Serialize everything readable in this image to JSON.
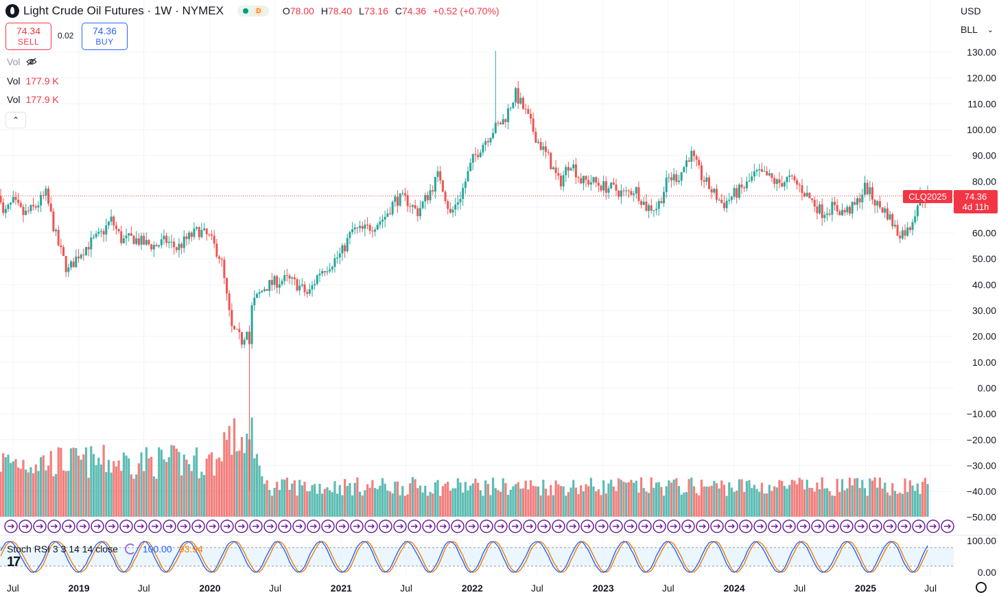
{
  "header": {
    "title": "Light Crude Oil Futures · 1W · NYMEX",
    "source_badge": "D",
    "ohlc": [
      {
        "k": "O",
        "v": "78.00"
      },
      {
        "k": "H",
        "v": "78.40"
      },
      {
        "k": "L",
        "v": "73.16"
      },
      {
        "k": "C",
        "v": "74.36"
      },
      {
        "k": "",
        "v": "+0.52 (+0.70%)"
      }
    ]
  },
  "trade": {
    "sell_price": "74.34",
    "sell_label": "SELL",
    "spread": "0.02",
    "buy_price": "74.36",
    "buy_label": "BUY"
  },
  "volume_legend": [
    {
      "label": "Vol",
      "value": ""
    },
    {
      "label": "Vol",
      "value": "177.9 K"
    },
    {
      "label": "Vol",
      "value": "177.9 K"
    }
  ],
  "currency": "USD",
  "unit": "BLL",
  "last_price": {
    "symbol": "CLQ2025",
    "price": "74.36",
    "countdown": "4d 11h"
  },
  "stoch_rsi": {
    "label": "Stoch RSI 3 3 14 14 close",
    "k_value": "100.00",
    "d_value": "93.94"
  },
  "colors": {
    "up": "#26a69a",
    "down": "#ef5350",
    "k_line": "#2962ff",
    "d_line": "#f57c00",
    "badge": "#f23645"
  },
  "chart_data": {
    "type": "candlestick",
    "title": "Light Crude Oil Futures · 1W · NYMEX",
    "y_ticks": [
      "130.00",
      "120.00",
      "110.00",
      "100.00",
      "90.00",
      "80.00",
      "70.00",
      "60.00",
      "50.00",
      "40.00",
      "30.00",
      "20.00",
      "10.00",
      "0.00",
      "−10.00",
      "−20.00",
      "−30.00",
      "−40.00",
      "−50.00"
    ],
    "x_ticks": [
      "Jul",
      "2019",
      "Jul",
      "2020",
      "Jul",
      "2021",
      "Jul",
      "2022",
      "Jul",
      "2023",
      "Jul",
      "2024",
      "Jul",
      "2025",
      "Jul"
    ],
    "ylim": [
      -55,
      134
    ],
    "anchors": [
      [
        "2018-06-01",
        66
      ],
      [
        "2018-07-01",
        72
      ],
      [
        "2018-08-01",
        67
      ],
      [
        "2018-09-01",
        70
      ],
      [
        "2018-10-01",
        75
      ],
      [
        "2018-11-01",
        57
      ],
      [
        "2018-12-01",
        45
      ],
      [
        "2019-01-01",
        52
      ],
      [
        "2019-02-01",
        56
      ],
      [
        "2019-03-01",
        59
      ],
      [
        "2019-04-01",
        65
      ],
      [
        "2019-05-01",
        57
      ],
      [
        "2019-06-01",
        58
      ],
      [
        "2019-07-01",
        56
      ],
      [
        "2019-08-01",
        55
      ],
      [
        "2019-09-01",
        57
      ],
      [
        "2019-10-01",
        54
      ],
      [
        "2019-11-01",
        58
      ],
      [
        "2019-12-01",
        61
      ],
      [
        "2020-01-01",
        58
      ],
      [
        "2020-02-01",
        50
      ],
      [
        "2020-03-01",
        23
      ],
      [
        "2020-04-01",
        18
      ],
      [
        "2020-05-01",
        33
      ],
      [
        "2020-06-01",
        39
      ],
      [
        "2020-07-01",
        41
      ],
      [
        "2020-08-01",
        42
      ],
      [
        "2020-09-01",
        40
      ],
      [
        "2020-10-01",
        36
      ],
      [
        "2020-11-01",
        45
      ],
      [
        "2020-12-01",
        48
      ],
      [
        "2021-01-01",
        52
      ],
      [
        "2021-02-01",
        61
      ],
      [
        "2021-03-01",
        61
      ],
      [
        "2021-04-01",
        63
      ],
      [
        "2021-05-01",
        66
      ],
      [
        "2021-06-01",
        73
      ],
      [
        "2021-07-01",
        73
      ],
      [
        "2021-08-01",
        68
      ],
      [
        "2021-09-01",
        75
      ],
      [
        "2021-10-01",
        83
      ],
      [
        "2021-11-01",
        67
      ],
      [
        "2021-12-01",
        75
      ],
      [
        "2022-01-01",
        88
      ],
      [
        "2022-02-01",
        95
      ],
      [
        "2022-03-01",
        100
      ],
      [
        "2022-04-01",
        104
      ],
      [
        "2022-05-01",
        114
      ],
      [
        "2022-06-01",
        106
      ],
      [
        "2022-07-01",
        96
      ],
      [
        "2022-08-01",
        89
      ],
      [
        "2022-09-01",
        79
      ],
      [
        "2022-10-01",
        88
      ],
      [
        "2022-11-01",
        80
      ],
      [
        "2022-12-01",
        80
      ],
      [
        "2023-01-01",
        78
      ],
      [
        "2023-02-01",
        77
      ],
      [
        "2023-03-01",
        75
      ],
      [
        "2023-04-01",
        77
      ],
      [
        "2023-05-01",
        70
      ],
      [
        "2023-06-01",
        70
      ],
      [
        "2023-07-01",
        81
      ],
      [
        "2023-08-01",
        82
      ],
      [
        "2023-09-01",
        91
      ],
      [
        "2023-10-01",
        82
      ],
      [
        "2023-11-01",
        76
      ],
      [
        "2023-12-01",
        71
      ],
      [
        "2024-01-01",
        75
      ],
      [
        "2024-02-01",
        78
      ],
      [
        "2024-03-01",
        83
      ],
      [
        "2024-04-01",
        82
      ],
      [
        "2024-05-01",
        79
      ],
      [
        "2024-06-01",
        81
      ],
      [
        "2024-07-01",
        78
      ],
      [
        "2024-08-01",
        73
      ],
      [
        "2024-09-01",
        68
      ],
      [
        "2024-10-01",
        70
      ],
      [
        "2024-11-01",
        68
      ],
      [
        "2024-12-01",
        70
      ],
      [
        "2025-01-01",
        78
      ],
      [
        "2025-02-01",
        71
      ],
      [
        "2025-03-01",
        68
      ],
      [
        "2025-04-01",
        60
      ],
      [
        "2025-05-01",
        61
      ],
      [
        "2025-06-01",
        74
      ],
      [
        "2025-06-20",
        74.36
      ]
    ],
    "x_axis_label": "",
    "y_axis_label": "",
    "volume_series": "Vol",
    "stoch_rsi_ticks": [
      "100.00",
      "0.00"
    ]
  }
}
